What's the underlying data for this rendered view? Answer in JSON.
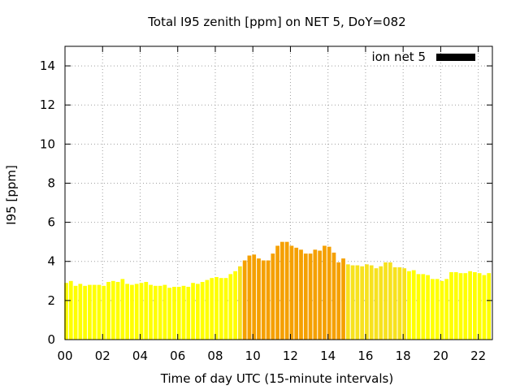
{
  "chart_data": {
    "type": "bar",
    "title": "Total I95 zenith [ppm] on NET 5, DoY=082",
    "xlabel": "Time of day UTC (15-minute intervals)",
    "ylabel": "I95 [ppm]",
    "xlim": [
      0,
      22.75
    ],
    "ylim": [
      0,
      15
    ],
    "x_ticks": [
      "00",
      "02",
      "04",
      "06",
      "08",
      "10",
      "12",
      "14",
      "16",
      "18",
      "20",
      "22"
    ],
    "y_ticks": [
      "0",
      "2",
      "4",
      "6",
      "8",
      "10",
      "12",
      "14"
    ],
    "grid": true,
    "legend": {
      "label": "ion net 5",
      "position": "top-right",
      "color": "#000000"
    },
    "colors": {
      "low": "#ffff00",
      "mid": "#f7e21e",
      "high": "#f5a000",
      "frame": "#000000"
    },
    "interval_hours": 0.25,
    "values": [
      2.9,
      3.0,
      2.75,
      2.85,
      2.75,
      2.8,
      2.8,
      2.8,
      2.75,
      2.95,
      3.0,
      2.95,
      3.1,
      2.85,
      2.8,
      2.85,
      2.9,
      2.95,
      2.8,
      2.75,
      2.75,
      2.8,
      2.65,
      2.7,
      2.7,
      2.75,
      2.7,
      2.9,
      2.85,
      2.95,
      3.05,
      3.15,
      3.2,
      3.15,
      3.15,
      3.35,
      3.5,
      3.75,
      4.05,
      4.3,
      4.35,
      4.15,
      4.05,
      4.05,
      4.4,
      4.8,
      5.0,
      5.0,
      4.8,
      4.7,
      4.6,
      4.4,
      4.4,
      4.6,
      4.55,
      4.8,
      4.75,
      4.45,
      3.95,
      4.15,
      3.85,
      3.8,
      3.8,
      3.75,
      3.85,
      3.8,
      3.65,
      3.75,
      3.95,
      3.95,
      3.7,
      3.7,
      3.65,
      3.5,
      3.55,
      3.35,
      3.35,
      3.3,
      3.1,
      3.1,
      3.0,
      3.1,
      3.45,
      3.45,
      3.4,
      3.4,
      3.5,
      3.45,
      3.4,
      3.3,
      3.4
    ],
    "highlight_range": [
      9.5,
      14.75
    ]
  }
}
